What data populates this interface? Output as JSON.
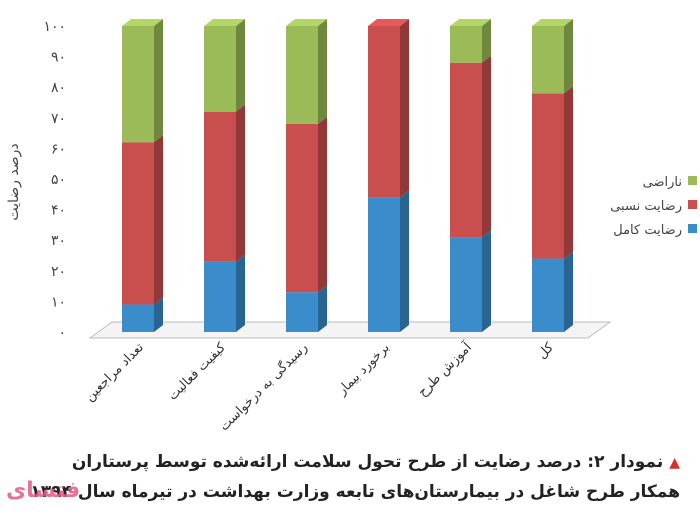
{
  "chart_data": {
    "type": "bar",
    "stacked": true,
    "categories": [
      "تعداد مراجعین",
      "کیفیت فعالیت",
      "رسیدگی به درخواست",
      "برخورد بیمار",
      "آموزش طرح",
      "کل"
    ],
    "series": [
      {
        "name": "رضایت کامل",
        "color": "#3a8ccb",
        "values": [
          9,
          23,
          13,
          44,
          31,
          24
        ]
      },
      {
        "name": "رضایت نسبی",
        "color": "#c94e4e",
        "values": [
          53,
          49,
          55,
          56,
          57,
          54
        ]
      },
      {
        "name": "ناراضی",
        "color": "#9bbb59",
        "values": [
          38,
          28,
          32,
          0,
          12,
          22
        ]
      }
    ],
    "ylabel": "درصد رضایت",
    "ylim": [
      0,
      100
    ],
    "yticks": [
      "۰",
      "۱۰",
      "۲۰",
      "۳۰",
      "۴۰",
      "۵۰",
      "۶۰",
      "۷۰",
      "۸۰",
      "۹۰",
      "۱۰۰"
    ],
    "legend_position": "right",
    "grid": false
  },
  "caption": {
    "line1": "نمودار ۲: درصد رضایت از طرح تحول سلامت ارائه‌شده توسط پرستاران",
    "line2": "همکار طرح شاغل در بیمارستان‌های تابعه وزارت بهداشت در تیرماه سال ۱۳۹۴"
  },
  "watermark": "فتسای"
}
